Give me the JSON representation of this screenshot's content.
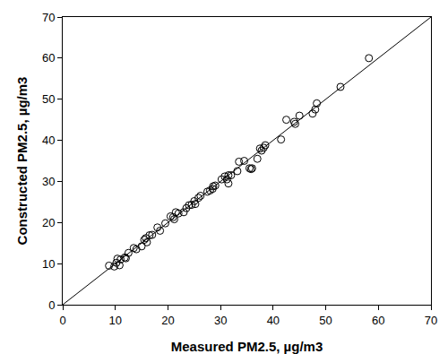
{
  "chart_data": {
    "type": "scatter",
    "x_label": "Measured PM2.5, µg/m3",
    "y_label": "Constructed PM2.5, µg/m3",
    "xlim": [
      0,
      70
    ],
    "ylim": [
      0,
      70
    ],
    "xticks": [
      0,
      10,
      20,
      30,
      40,
      50,
      60,
      70
    ],
    "yticks": [
      0,
      10,
      20,
      30,
      40,
      50,
      60,
      70
    ],
    "grid": false,
    "series": [
      {
        "type": "scatter",
        "marker": "open_circle",
        "color": "#000000",
        "x": [
          8.8,
          9.8,
          10.2,
          10.4,
          10.8,
          11,
          11.8,
          12,
          12.5,
          13.5,
          14,
          15,
          15.5,
          15.8,
          16,
          16.5,
          17,
          18,
          18.5,
          19.5,
          20.5,
          21,
          21.2,
          21.5,
          22,
          23,
          23.5,
          24,
          24.5,
          25,
          25.2,
          25.8,
          26.2,
          27.5,
          28,
          28.5,
          28.6,
          29,
          30.2,
          30.8,
          31.2,
          31.5,
          31.5,
          32,
          33.2,
          33.5,
          34.5,
          35.5,
          35.8,
          36,
          37,
          37.5,
          37.8,
          38.2,
          38.5,
          41.5,
          42.5,
          44,
          44.2,
          45,
          47.5,
          48,
          48.3,
          52.8,
          58.2
        ],
        "values": [
          9.5,
          9.3,
          10.2,
          11.2,
          9.6,
          11,
          11.5,
          11.3,
          12.6,
          13.8,
          13.5,
          14.2,
          15.8,
          16.2,
          15.2,
          16.9,
          17,
          18.8,
          18,
          19.8,
          21.5,
          21.3,
          20.8,
          22.5,
          22.2,
          22.5,
          23.5,
          24.2,
          24.3,
          25.2,
          24.5,
          26,
          26.5,
          27.5,
          27.8,
          28.2,
          28.8,
          29,
          30.5,
          31.2,
          30.5,
          29.5,
          31.5,
          31.5,
          32.5,
          34.8,
          35,
          33.2,
          33,
          33.2,
          35.5,
          38,
          37.5,
          38.2,
          38.8,
          40.2,
          45,
          44.5,
          44,
          46,
          46.5,
          47.5,
          49,
          53,
          60
        ]
      },
      {
        "type": "line",
        "line_style": "solid",
        "color": "#000000",
        "x": [
          0,
          70
        ],
        "values": [
          0,
          70
        ]
      }
    ]
  }
}
